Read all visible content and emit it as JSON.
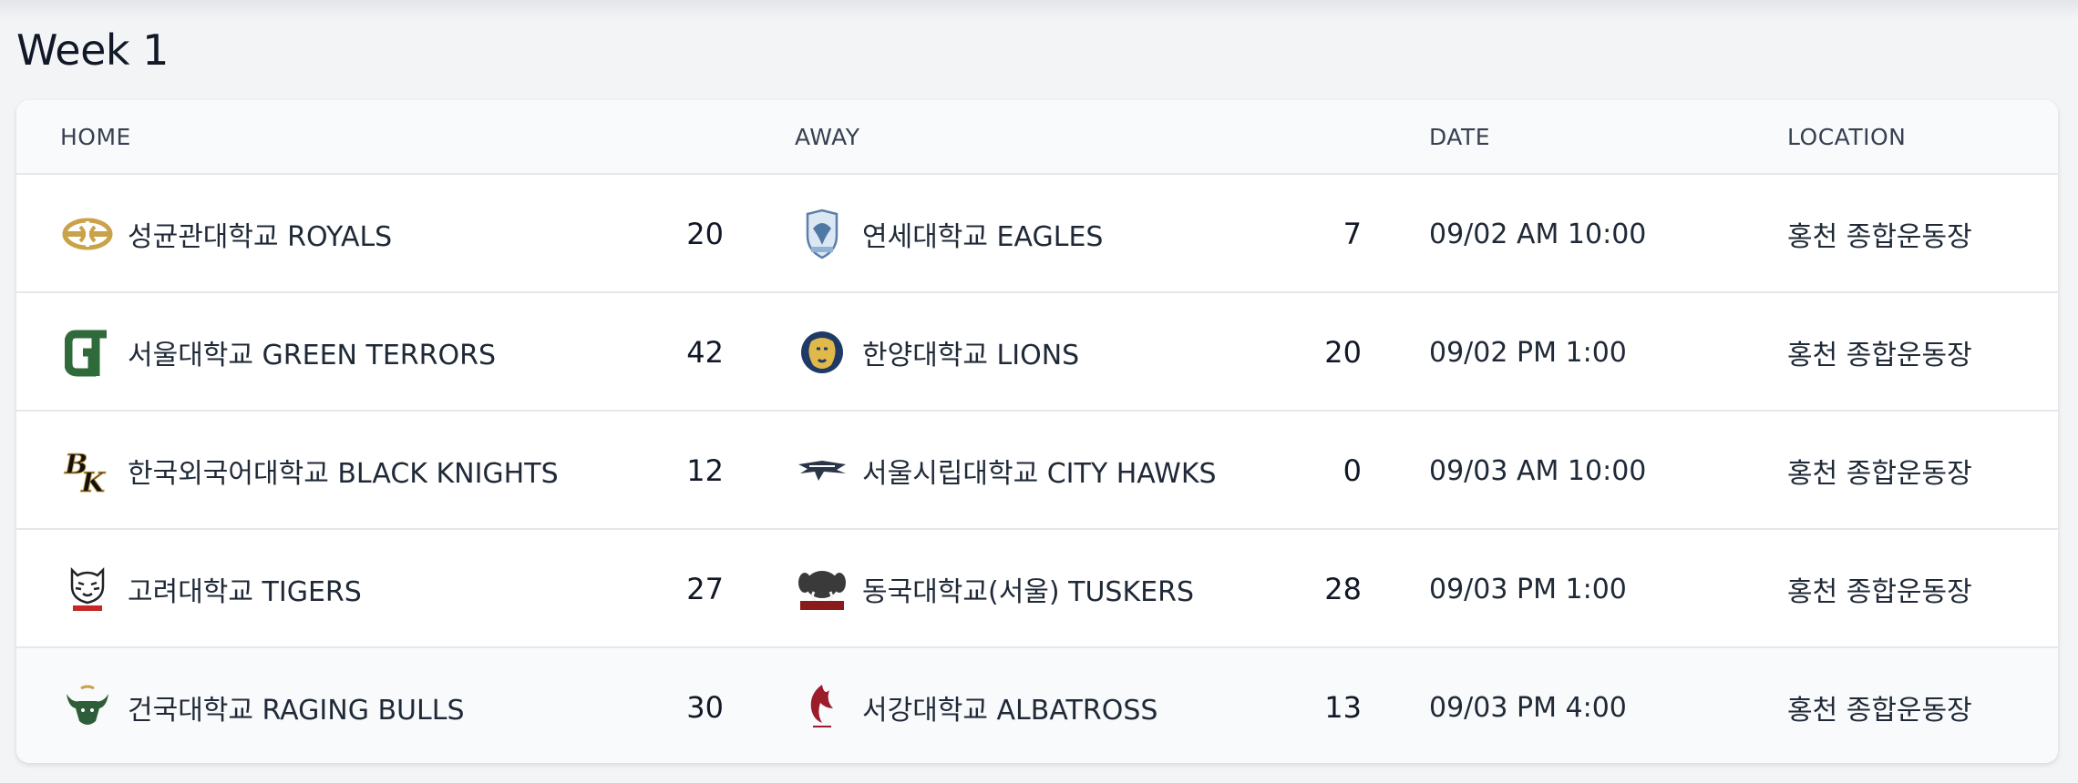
{
  "title": "Week 1",
  "headers": {
    "home": "HOME",
    "away": "AWAY",
    "date": "DATE",
    "location": "LOCATION"
  },
  "games": [
    {
      "home": {
        "name": "성균관대학교 ROYALS",
        "score": "20",
        "logo": "royals-logo"
      },
      "away": {
        "name": "연세대학교 EAGLES",
        "score": "7",
        "logo": "eagles-logo"
      },
      "date": "09/02 AM 10:00",
      "location": "홍천 종합운동장"
    },
    {
      "home": {
        "name": "서울대학교 GREEN TERRORS",
        "score": "42",
        "logo": "green-terrors-logo"
      },
      "away": {
        "name": "한양대학교 LIONS",
        "score": "20",
        "logo": "lions-logo"
      },
      "date": "09/02 PM 1:00",
      "location": "홍천 종합운동장"
    },
    {
      "home": {
        "name": "한국외국어대학교 BLACK KNIGHTS",
        "score": "12",
        "logo": "black-knights-logo"
      },
      "away": {
        "name": "서울시립대학교 CITY HAWKS",
        "score": "0",
        "logo": "city-hawks-logo"
      },
      "date": "09/03 AM 10:00",
      "location": "홍천 종합운동장"
    },
    {
      "home": {
        "name": "고려대학교 TIGERS",
        "score": "27",
        "logo": "tigers-logo"
      },
      "away": {
        "name": "동국대학교(서울) TUSKERS",
        "score": "28",
        "logo": "tuskers-logo"
      },
      "date": "09/03 PM 1:00",
      "location": "홍천 종합운동장"
    },
    {
      "home": {
        "name": "건국대학교 RAGING BULLS",
        "score": "30",
        "logo": "raging-bulls-logo"
      },
      "away": {
        "name": "서강대학교 ALBATROSS",
        "score": "13",
        "logo": "albatross-logo"
      },
      "date": "09/03 PM 4:00",
      "location": "홍천 종합운동장"
    }
  ],
  "colors": {
    "page_bg": "#f3f4f6",
    "card_bg": "#ffffff",
    "header_bg": "#f9fafb",
    "divider": "#e5e7eb",
    "text": "#1f2937"
  }
}
